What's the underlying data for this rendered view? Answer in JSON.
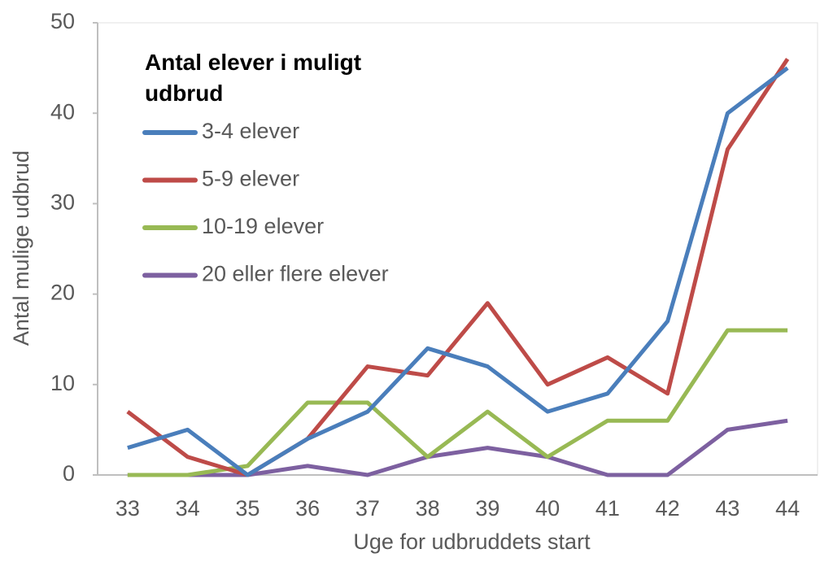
{
  "chart_data": {
    "type": "line",
    "legend_title": "Antal elever i muligt udbrud",
    "xlabel": "Uge for udbruddets start",
    "ylabel": "Antal mulige udbrud",
    "categories": [
      "33",
      "34",
      "35",
      "36",
      "37",
      "38",
      "39",
      "40",
      "41",
      "42",
      "43",
      "44"
    ],
    "series": [
      {
        "name": "3-4 elever",
        "color": "#4a7ebb",
        "values": [
          3,
          5,
          0,
          4,
          7,
          14,
          12,
          7,
          9,
          17,
          40,
          45
        ]
      },
      {
        "name": "5-9 elever",
        "color": "#be4b48",
        "values": [
          7,
          2,
          0,
          4,
          12,
          11,
          19,
          10,
          13,
          9,
          36,
          46
        ]
      },
      {
        "name": "10-19 elever",
        "color": "#98b954",
        "values": [
          0,
          0,
          1,
          8,
          8,
          2,
          7,
          2,
          6,
          6,
          16,
          16
        ]
      },
      {
        "name": "20 eller flere elever",
        "color": "#7d60a0",
        "values": [
          0,
          0,
          0,
          1,
          0,
          2,
          3,
          2,
          0,
          0,
          5,
          6
        ]
      }
    ],
    "ylim": [
      0,
      50
    ],
    "yticks": [
      0,
      10,
      20,
      30,
      40,
      50
    ],
    "legend": "upper left"
  }
}
